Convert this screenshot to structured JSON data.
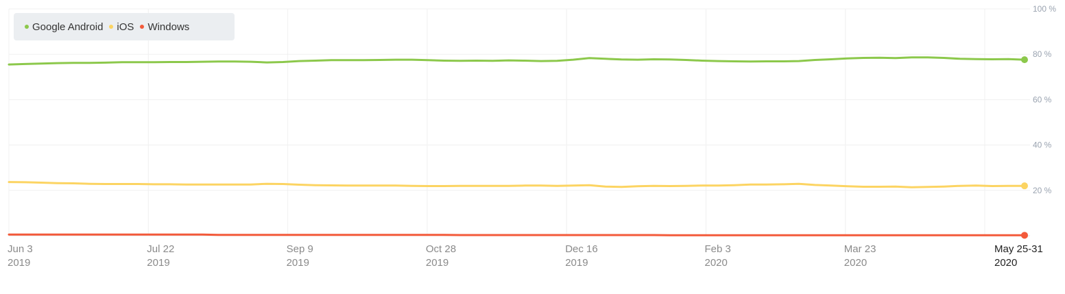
{
  "chart_data": {
    "type": "line",
    "title": "",
    "xlabel": "",
    "ylabel": "",
    "ylim": [
      0,
      100
    ],
    "yticks": [
      "100 %",
      "80 %",
      "60 %",
      "40 %",
      "20 %"
    ],
    "ytick_values": [
      100,
      80,
      60,
      40,
      20
    ],
    "xticks": [
      {
        "line1": "Jun 3",
        "line2": "2019"
      },
      {
        "line1": "Jul 22",
        "line2": "2019"
      },
      {
        "line1": "Sep 9",
        "line2": "2019"
      },
      {
        "line1": "Oct 28",
        "line2": "2019"
      },
      {
        "line1": "Dec 16",
        "line2": "2019"
      },
      {
        "line1": "Feb 3",
        "line2": "2020"
      },
      {
        "line1": "Mar 23",
        "line2": "2020"
      },
      {
        "line1": "May 25-31",
        "line2": "2020"
      }
    ],
    "legend_position": "top-left",
    "grid": true,
    "series": [
      {
        "name": "Google Android",
        "color": "#8cc84b",
        "values": [
          75.5,
          75.7,
          75.9,
          76.1,
          76.2,
          76.2,
          76.3,
          76.5,
          76.5,
          76.5,
          76.6,
          76.6,
          76.7,
          76.8,
          76.8,
          76.7,
          76.4,
          76.6,
          77.0,
          77.2,
          77.4,
          77.4,
          77.4,
          77.5,
          77.6,
          77.6,
          77.4,
          77.2,
          77.1,
          77.2,
          77.1,
          77.3,
          77.2,
          77.0,
          77.1,
          77.6,
          78.3,
          78.0,
          77.7,
          77.6,
          77.8,
          77.7,
          77.5,
          77.2,
          77.0,
          76.9,
          76.8,
          76.9,
          76.9,
          77.0,
          77.5,
          77.8,
          78.2,
          78.4,
          78.5,
          78.3,
          78.6,
          78.6,
          78.4,
          78.0,
          77.9,
          77.8,
          77.9,
          77.6
        ]
      },
      {
        "name": "iOS",
        "color": "#fcd462",
        "values": [
          23.7,
          23.6,
          23.4,
          23.2,
          23.1,
          22.9,
          22.8,
          22.8,
          22.8,
          22.7,
          22.7,
          22.6,
          22.6,
          22.6,
          22.6,
          22.6,
          22.9,
          22.8,
          22.5,
          22.3,
          22.2,
          22.1,
          22.1,
          22.1,
          22.1,
          22.0,
          21.9,
          21.9,
          22.0,
          22.0,
          22.0,
          22.0,
          22.1,
          22.1,
          22.0,
          22.1,
          22.3,
          21.7,
          21.5,
          21.8,
          22.0,
          21.9,
          22.0,
          22.1,
          22.1,
          22.3,
          22.6,
          22.6,
          22.7,
          22.9,
          22.4,
          22.1,
          21.8,
          21.6,
          21.6,
          21.7,
          21.4,
          21.5,
          21.7,
          22.0,
          22.1,
          21.9,
          22.0,
          22.0
        ]
      },
      {
        "name": "Windows",
        "color": "#f35a3a",
        "values": [
          0.5,
          0.5,
          0.5,
          0.5,
          0.5,
          0.5,
          0.5,
          0.5,
          0.5,
          0.5,
          0.5,
          0.5,
          0.5,
          0.4,
          0.4,
          0.4,
          0.4,
          0.4,
          0.4,
          0.4,
          0.4,
          0.4,
          0.4,
          0.4,
          0.4,
          0.4,
          0.4,
          0.4,
          0.3,
          0.3,
          0.3,
          0.3,
          0.3,
          0.3,
          0.3,
          0.3,
          0.3,
          0.3,
          0.3,
          0.3,
          0.3,
          0.2,
          0.2,
          0.2,
          0.2,
          0.2,
          0.2,
          0.2,
          0.2,
          0.2,
          0.2,
          0.2,
          0.2,
          0.2,
          0.2,
          0.2,
          0.2,
          0.2,
          0.2,
          0.2,
          0.2,
          0.2,
          0.2,
          0.2
        ]
      }
    ]
  }
}
